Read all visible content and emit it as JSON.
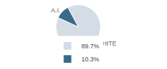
{
  "chart_data": {
    "type": "pie",
    "categories": [
      "WHITE",
      "A.I."
    ],
    "values": [
      89.7,
      10.3
    ],
    "value_labels": [
      "89.7%",
      "10.3%"
    ],
    "colors": [
      "#d4dde6",
      "#3b6b8a"
    ],
    "legend": "bottom"
  }
}
